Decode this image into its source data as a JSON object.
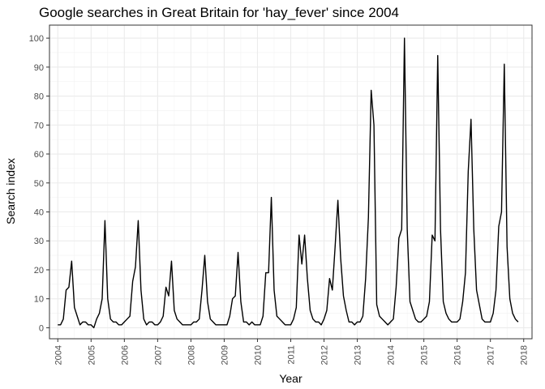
{
  "chart_data": {
    "type": "line",
    "title": "Google searches in Great Britain for 'hay_fever' since 2004",
    "xlabel": "Year",
    "ylabel": "Search index",
    "xlim": [
      2003.75,
      2018.25
    ],
    "ylim": [
      -3.8,
      104.5
    ],
    "x_ticks": [
      "2004",
      "2005",
      "2006",
      "2007",
      "2008",
      "2009",
      "2010",
      "2011",
      "2012",
      "2013",
      "2014",
      "2015",
      "2016",
      "2017",
      "2018"
    ],
    "y_ticks": [
      "0",
      "10",
      "20",
      "30",
      "40",
      "50",
      "60",
      "70",
      "80",
      "90",
      "100"
    ],
    "grid": true,
    "x_start": "2004-01",
    "frequency": "monthly",
    "series": [
      {
        "color": "#000000",
        "values": [
          1,
          1,
          3,
          13,
          14,
          23,
          7,
          4,
          1,
          2,
          2,
          1,
          1,
          0,
          3,
          5,
          10,
          37,
          10,
          3,
          2,
          2,
          1,
          1,
          2,
          3,
          4,
          16,
          21,
          37,
          13,
          3,
          1,
          2,
          2,
          1,
          1,
          2,
          4,
          14,
          11,
          23,
          6,
          3,
          2,
          1,
          1,
          1,
          1,
          2,
          2,
          3,
          13,
          25,
          9,
          3,
          2,
          1,
          1,
          1,
          1,
          1,
          4,
          10,
          11,
          26,
          9,
          2,
          2,
          1,
          2,
          1,
          1,
          1,
          4,
          19,
          19,
          45,
          13,
          4,
          3,
          2,
          1,
          1,
          1,
          3,
          7,
          32,
          22,
          32,
          17,
          6,
          3,
          2,
          2,
          1,
          3,
          6,
          17,
          13,
          28,
          44,
          24,
          11,
          6,
          2,
          2,
          1,
          2,
          2,
          4,
          17,
          38,
          82,
          70,
          8,
          4,
          3,
          2,
          1,
          2,
          3,
          14,
          31,
          34,
          100,
          34,
          9,
          6,
          3,
          2,
          2,
          3,
          4,
          9,
          32,
          30,
          94,
          34,
          9,
          5,
          3,
          2,
          2,
          2,
          3,
          9,
          19,
          54,
          72,
          34,
          13,
          8,
          3,
          2,
          2,
          2,
          5,
          13,
          35,
          40,
          91,
          28,
          10,
          5,
          3,
          2
        ]
      }
    ]
  }
}
